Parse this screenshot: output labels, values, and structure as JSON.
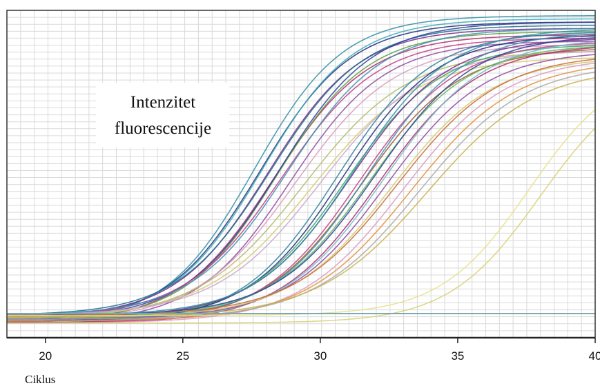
{
  "chart_data": {
    "type": "line",
    "title": "",
    "xlabel": "Ciklus",
    "ylabel": "Intenzitet fluorescencije",
    "ylabel_lines": [
      "Intenzitet",
      "fluorescencije"
    ],
    "xlim": [
      18.6,
      40
    ],
    "ylim": [
      0,
      1
    ],
    "x_ticks": [
      20,
      25,
      30,
      35,
      40
    ],
    "grid": true,
    "legend": "none",
    "series": [
      {
        "color": "#2e8fa6",
        "ct": 27.6,
        "plateau": 0.99,
        "k": 0.62
      },
      {
        "color": "#1f2d7a",
        "ct": 27.8,
        "plateau": 0.97,
        "k": 0.6
      },
      {
        "color": "#3aa9b8",
        "ct": 27.9,
        "plateau": 0.98,
        "k": 0.61
      },
      {
        "color": "#7a2a8a",
        "ct": 28.1,
        "plateau": 0.95,
        "k": 0.6
      },
      {
        "color": "#1d6e8c",
        "ct": 28.2,
        "plateau": 0.96,
        "k": 0.59
      },
      {
        "color": "#b0286e",
        "ct": 28.3,
        "plateau": 0.93,
        "k": 0.58
      },
      {
        "color": "#5c9c3f",
        "ct": 28.4,
        "plateau": 0.94,
        "k": 0.6
      },
      {
        "color": "#2a3f9a",
        "ct": 28.5,
        "plateau": 0.97,
        "k": 0.59
      },
      {
        "color": "#c43c86",
        "ct": 28.6,
        "plateau": 0.92,
        "k": 0.57
      },
      {
        "color": "#3d8fb0",
        "ct": 28.8,
        "plateau": 0.95,
        "k": 0.58
      },
      {
        "color": "#8c4aa0",
        "ct": 28.9,
        "plateau": 0.91,
        "k": 0.58
      },
      {
        "color": "#d89ac0",
        "ct": 29.1,
        "plateau": 0.9,
        "k": 0.55
      },
      {
        "color": "#b5b86a",
        "ct": 29.4,
        "plateau": 0.88,
        "k": 0.52
      },
      {
        "color": "#d4c96a",
        "ct": 29.7,
        "plateau": 0.86,
        "k": 0.52
      },
      {
        "color": "#c9a6d0",
        "ct": 30.0,
        "plateau": 0.88,
        "k": 0.53
      },
      {
        "color": "#2d7f9c",
        "ct": 30.6,
        "plateau": 0.94,
        "k": 0.58
      },
      {
        "color": "#1f2d7a",
        "ct": 30.8,
        "plateau": 0.93,
        "k": 0.58
      },
      {
        "color": "#3aa96a",
        "ct": 30.9,
        "plateau": 0.9,
        "k": 0.57
      },
      {
        "color": "#7a2a8a",
        "ct": 31.1,
        "plateau": 0.92,
        "k": 0.57
      },
      {
        "color": "#2e8fa6",
        "ct": 31.2,
        "plateau": 0.95,
        "k": 0.58
      },
      {
        "color": "#c43c86",
        "ct": 31.4,
        "plateau": 0.91,
        "k": 0.56
      },
      {
        "color": "#9a5a2a",
        "ct": 31.5,
        "plateau": 0.89,
        "k": 0.56
      },
      {
        "color": "#3d8fb0",
        "ct": 31.7,
        "plateau": 0.94,
        "k": 0.57
      },
      {
        "color": "#5fb35c",
        "ct": 31.8,
        "plateau": 0.9,
        "k": 0.56
      },
      {
        "color": "#2a3f9a",
        "ct": 32.0,
        "plateau": 0.93,
        "k": 0.56
      },
      {
        "color": "#b0286e",
        "ct": 32.1,
        "plateau": 0.9,
        "k": 0.55
      },
      {
        "color": "#6fb8c8",
        "ct": 32.3,
        "plateau": 0.92,
        "k": 0.55
      },
      {
        "color": "#8c4aa0",
        "ct": 32.4,
        "plateau": 0.88,
        "k": 0.55
      },
      {
        "color": "#d4c96a",
        "ct": 32.6,
        "plateau": 0.86,
        "k": 0.54
      },
      {
        "color": "#c86a3a",
        "ct": 32.8,
        "plateau": 0.87,
        "k": 0.53
      },
      {
        "color": "#d89ac0",
        "ct": 33.0,
        "plateau": 0.86,
        "k": 0.53
      },
      {
        "color": "#e0903a",
        "ct": 33.3,
        "plateau": 0.85,
        "k": 0.52
      },
      {
        "color": "#a8a8a8",
        "ct": 33.6,
        "plateau": 0.84,
        "k": 0.52
      },
      {
        "color": "#c8b04a",
        "ct": 33.9,
        "plateau": 0.83,
        "k": 0.5
      },
      {
        "color": "#e6e08a",
        "ct": 37.6,
        "plateau": 0.84,
        "k": 0.62
      },
      {
        "color": "#d8d070",
        "ct": 38.0,
        "plateau": 0.82,
        "k": 0.6
      }
    ],
    "baseline_series": [
      {
        "color": "#555555",
        "value": 0.05
      },
      {
        "color": "#7ab0c0",
        "value": 0.05
      }
    ]
  }
}
